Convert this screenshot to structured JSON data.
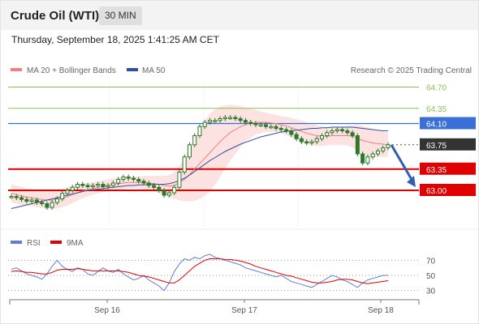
{
  "header": {
    "title": "Crude Oil (WTI)",
    "timeframe": "30 MIN"
  },
  "datetime": "Thursday, September 18, 2025 1:41:25 AM CET",
  "legend": {
    "ma20": "MA 20 + Bollinger Bands",
    "ma50": "MA 50",
    "credit": "Research © 2025 Trading Central",
    "rsi": "RSI",
    "rsi_ma": "9MA"
  },
  "colors": {
    "ma20": "#f08080",
    "ma50": "#3050a0",
    "band": "#fde2e2",
    "candle": "#2a7a2a",
    "resistance": "#8dc050",
    "pivot": "#3a6fd8",
    "support": "#e00000",
    "current": "#333333",
    "rsi": "#5b7fd6",
    "rsi_ma": "#e00000",
    "arrow": "#2f5fb0"
  },
  "chart_data": [
    {
      "type": "candlestick",
      "title": "Crude Oil (WTI) 30 MIN",
      "ylim": [
        62.4,
        64.8
      ],
      "x_labels": [
        "Sep 16",
        "Sep 17",
        "Sep 18"
      ],
      "levels": [
        {
          "value": 64.7,
          "label": "64.70",
          "kind": "resistance"
        },
        {
          "value": 64.35,
          "label": "64.35",
          "kind": "resistance"
        },
        {
          "value": 64.1,
          "label": "64.10",
          "kind": "pivot"
        },
        {
          "value": 63.75,
          "label": "63.75",
          "kind": "current"
        },
        {
          "value": 63.35,
          "label": "63.35",
          "kind": "support"
        },
        {
          "value": 63.0,
          "label": "63.00",
          "kind": "support"
        }
      ],
      "projection": {
        "from": 63.75,
        "to": 63.0
      },
      "close_series": [
        62.9,
        62.88,
        62.85,
        62.82,
        62.84,
        62.8,
        62.78,
        62.72,
        62.8,
        62.86,
        62.95,
        63.0,
        63.05,
        63.1,
        63.08,
        63.06,
        63.08,
        63.1,
        63.06,
        63.08,
        63.12,
        63.18,
        63.22,
        63.2,
        63.18,
        63.15,
        63.12,
        63.08,
        63.05,
        63.0,
        62.92,
        62.96,
        63.05,
        63.3,
        63.55,
        63.75,
        63.9,
        64.05,
        64.12,
        64.15,
        64.15,
        64.18,
        64.2,
        64.2,
        64.18,
        64.15,
        64.12,
        64.1,
        64.08,
        64.08,
        64.05,
        64.05,
        64.02,
        64.0,
        63.98,
        63.92,
        63.85,
        63.8,
        63.78,
        63.8,
        63.85,
        63.9,
        63.95,
        63.98,
        64.0,
        63.98,
        63.95,
        63.9,
        63.6,
        63.45,
        63.55,
        63.6,
        63.65,
        63.7,
        63.75
      ],
      "ma20_series": [
        62.95,
        62.93,
        62.91,
        62.89,
        62.88,
        62.86,
        62.85,
        62.84,
        62.84,
        62.85,
        62.87,
        62.9,
        62.93,
        62.96,
        62.99,
        63.01,
        63.03,
        63.05,
        63.07,
        63.08,
        63.1,
        63.11,
        63.12,
        63.13,
        63.13,
        63.13,
        63.13,
        63.12,
        63.11,
        63.1,
        63.08,
        63.07,
        63.08,
        63.12,
        63.18,
        63.26,
        63.35,
        63.44,
        63.53,
        63.62,
        63.71,
        63.8,
        63.88,
        63.95,
        64.0,
        64.05,
        64.08,
        64.1,
        64.12,
        64.12,
        64.12,
        64.11,
        64.1,
        64.08,
        64.06,
        64.03,
        64.0,
        63.97,
        63.94,
        63.92,
        63.9,
        63.89,
        63.89,
        63.9,
        63.9,
        63.9,
        63.9,
        63.89,
        63.86,
        63.82,
        63.8,
        63.78,
        63.77,
        63.76,
        63.75
      ],
      "band_width": [
        0.15,
        0.15,
        0.15,
        0.14,
        0.14,
        0.14,
        0.14,
        0.15,
        0.15,
        0.15,
        0.15,
        0.15,
        0.14,
        0.13,
        0.12,
        0.11,
        0.1,
        0.1,
        0.1,
        0.1,
        0.1,
        0.1,
        0.1,
        0.1,
        0.1,
        0.1,
        0.11,
        0.12,
        0.13,
        0.14,
        0.16,
        0.18,
        0.22,
        0.28,
        0.36,
        0.44,
        0.52,
        0.58,
        0.62,
        0.64,
        0.62,
        0.58,
        0.52,
        0.46,
        0.4,
        0.34,
        0.28,
        0.24,
        0.2,
        0.18,
        0.16,
        0.15,
        0.14,
        0.14,
        0.15,
        0.16,
        0.17,
        0.18,
        0.18,
        0.18,
        0.17,
        0.16,
        0.15,
        0.15,
        0.15,
        0.15,
        0.16,
        0.18,
        0.22,
        0.24,
        0.24,
        0.23,
        0.22,
        0.21,
        0.2
      ],
      "ma50_series": [
        62.7,
        62.72,
        62.74,
        62.76,
        62.78,
        62.8,
        62.82,
        62.84,
        62.86,
        62.88,
        62.9,
        62.92,
        62.94,
        62.96,
        62.98,
        63.0,
        63.01,
        63.02,
        63.03,
        63.04,
        63.05,
        63.06,
        63.07,
        63.08,
        63.08,
        63.09,
        63.09,
        63.1,
        63.1,
        63.1,
        63.1,
        63.11,
        63.13,
        63.16,
        63.2,
        63.25,
        63.31,
        63.37,
        63.43,
        63.49,
        63.54,
        63.59,
        63.64,
        63.68,
        63.72,
        63.76,
        63.79,
        63.82,
        63.85,
        63.88,
        63.9,
        63.92,
        63.94,
        63.96,
        63.97,
        63.98,
        63.99,
        64.0,
        64.01,
        64.02,
        64.02,
        64.03,
        64.03,
        64.04,
        64.04,
        64.04,
        64.04,
        64.04,
        64.03,
        64.02,
        64.01,
        64.0,
        63.99,
        63.98,
        63.98
      ]
    },
    {
      "type": "line",
      "title": "RSI",
      "ylim": [
        20,
        80
      ],
      "y_ticks": [
        70,
        50,
        30
      ],
      "series": [
        {
          "name": "RSI",
          "values": [
            58,
            60,
            56,
            52,
            50,
            48,
            45,
            52,
            62,
            70,
            62,
            58,
            55,
            60,
            58,
            52,
            50,
            55,
            60,
            56,
            54,
            58,
            52,
            48,
            44,
            46,
            50,
            44,
            40,
            36,
            30,
            40,
            55,
            65,
            72,
            70,
            74,
            72,
            76,
            78,
            74,
            72,
            70,
            68,
            66,
            64,
            60,
            58,
            56,
            54,
            52,
            50,
            48,
            50,
            46,
            42,
            40,
            38,
            36,
            34,
            38,
            42,
            46,
            50,
            48,
            44,
            42,
            38,
            34,
            40,
            44,
            46,
            48,
            50,
            50
          ]
        },
        {
          "name": "9MA",
          "values": [
            55,
            56,
            55,
            54,
            54,
            53,
            52,
            52,
            54,
            57,
            58,
            58,
            58,
            59,
            58,
            57,
            56,
            56,
            56,
            56,
            56,
            56,
            55,
            54,
            52,
            50,
            49,
            48,
            46,
            44,
            42,
            40,
            40,
            44,
            50,
            56,
            62,
            66,
            70,
            72,
            72,
            72,
            71,
            71,
            70,
            69,
            67,
            65,
            62,
            60,
            58,
            56,
            54,
            52,
            50,
            49,
            47,
            45,
            43,
            41,
            40,
            40,
            41,
            42,
            44,
            45,
            45,
            44,
            42,
            40,
            39,
            40,
            41,
            42,
            43
          ]
        }
      ],
      "x_labels": [
        "Sep 16",
        "Sep 17",
        "Sep 18"
      ]
    }
  ]
}
